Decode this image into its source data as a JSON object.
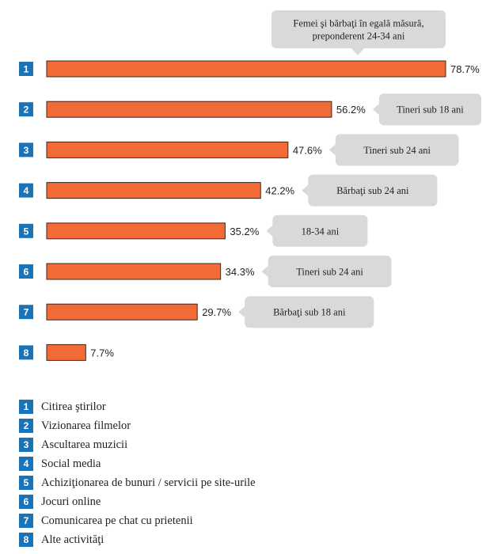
{
  "chart_data": {
    "type": "bar",
    "orientation": "horizontal",
    "title": "",
    "categories": [
      "1",
      "2",
      "3",
      "4",
      "5",
      "6",
      "7",
      "8"
    ],
    "values": [
      78.7,
      56.2,
      47.6,
      42.2,
      35.2,
      34.3,
      29.7,
      7.7
    ],
    "value_labels": [
      "78.7%",
      "56.2%",
      "47.6%",
      "42.2%",
      "35.2%",
      "34.3%",
      "29.7%",
      "7.7%"
    ],
    "callouts": [
      [
        "Femei şi bărbaţi în egală măsură,",
        "preponderent 24-34 ani"
      ],
      [
        "Tineri sub 18 ani"
      ],
      [
        "Tineri sub 24 ani"
      ],
      [
        "Bărbaţi sub 24 ani"
      ],
      [
        "18-34 ani"
      ],
      [
        "Tineri sub 24 ani"
      ],
      [
        "Bărbaţi sub 18 ani"
      ],
      []
    ],
    "xlim": [
      0,
      78.7
    ],
    "grid": false,
    "bar_color": "#f26a35",
    "bar_stroke": "#3a2a20",
    "badge_color": "#1b73b7",
    "callout_color": "#d9d9d9",
    "legend_position": "bottom-left"
  },
  "legend": [
    {
      "num": "1",
      "label": "Citirea ştirilor"
    },
    {
      "num": "2",
      "label": "Vizionarea filmelor"
    },
    {
      "num": "3",
      "label": "Ascultarea muzicii"
    },
    {
      "num": "4",
      "label": "Social media"
    },
    {
      "num": "5",
      "label": "Achiziţionarea de bunuri / servicii pe site-urile"
    },
    {
      "num": "6",
      "label": "Jocuri online"
    },
    {
      "num": "7",
      "label": "Comunicarea pe chat cu prietenii"
    },
    {
      "num": "8",
      "label": "Alte activităţi"
    }
  ]
}
